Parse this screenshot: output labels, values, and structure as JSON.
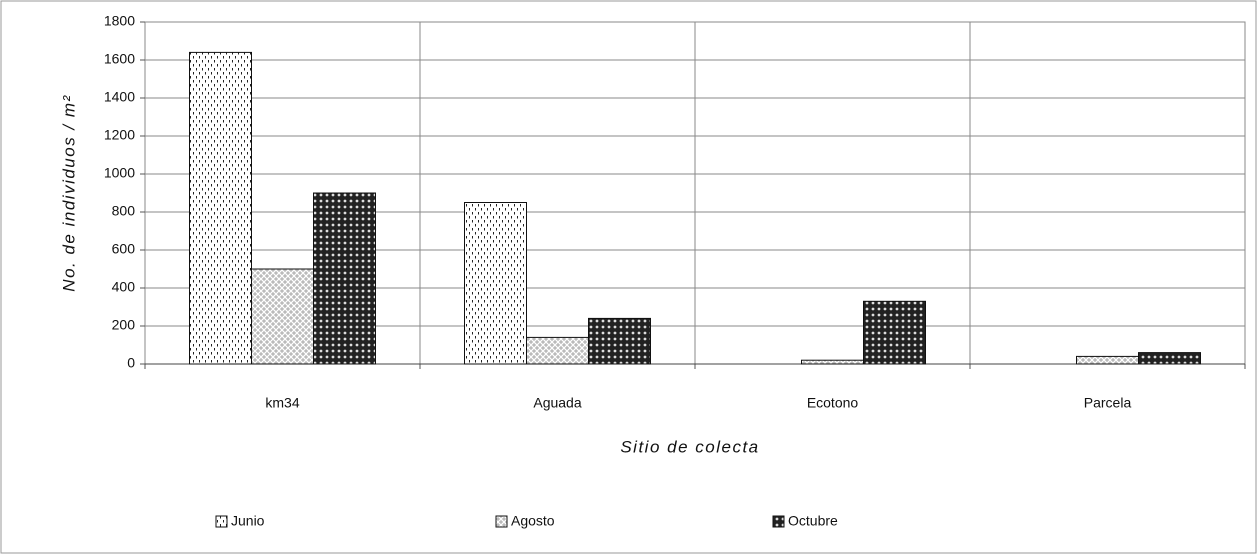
{
  "chart_data": {
    "type": "bar",
    "y_label": "No. de individuos / m²",
    "x_label": "Sitio de colecta",
    "categories": [
      "km34",
      "Aguada",
      "Ecotono",
      "Parcela"
    ],
    "series": [
      {
        "name": "Junio",
        "color": "#ffffff",
        "values": [
          1640,
          850,
          0,
          0
        ]
      },
      {
        "name": "Agosto",
        "color": "#9a9a9a",
        "values": [
          500,
          140,
          20,
          40
        ]
      },
      {
        "name": "Octubre",
        "color": "#222222",
        "values": [
          900,
          240,
          330,
          60
        ]
      }
    ],
    "ylim": [
      0,
      1800
    ],
    "yticks": [
      0,
      200,
      400,
      600,
      800,
      1000,
      1200,
      1400,
      1600,
      1800
    ],
    "grid": true,
    "legend": "bottom"
  }
}
